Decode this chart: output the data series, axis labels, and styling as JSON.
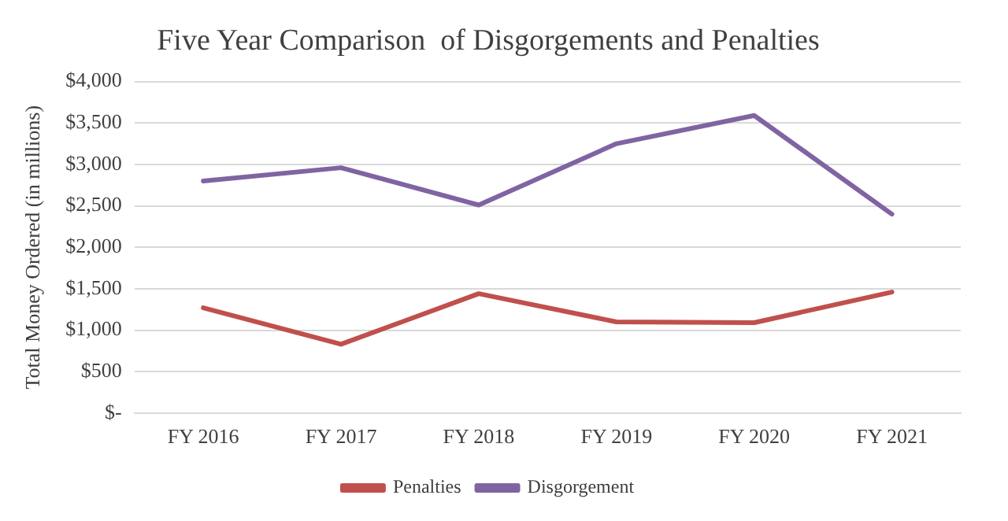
{
  "chart_data": {
    "type": "line",
    "title": "Five Year Comparison  of Disgorgements and Penalties",
    "ylabel": "Total Money Ordered (in millions)",
    "categories": [
      "FY 2016",
      "FY 2017",
      "FY 2018",
      "FY 2019",
      "FY 2020",
      "FY 2021"
    ],
    "series": [
      {
        "name": "Penalties",
        "color": "#c0504d",
        "values": [
          1270,
          830,
          1440,
          1100,
          1090,
          1460
        ]
      },
      {
        "name": "Disgorgement",
        "color": "#8064a2",
        "values": [
          2800,
          2960,
          2510,
          3250,
          3590,
          2400
        ]
      }
    ],
    "ylim": [
      0,
      4000
    ],
    "yticks": [
      {
        "value": 0,
        "label": "$-"
      },
      {
        "value": 500,
        "label": "$500"
      },
      {
        "value": 1000,
        "label": "$1,000"
      },
      {
        "value": 1500,
        "label": "$1,500"
      },
      {
        "value": 2000,
        "label": "$2,000"
      },
      {
        "value": 2500,
        "label": "$2,500"
      },
      {
        "value": 3000,
        "label": "$3,000"
      },
      {
        "value": 3500,
        "label": "$3,500"
      },
      {
        "value": 4000,
        "label": "$4,000"
      }
    ],
    "grid": "y",
    "legend": "bottom",
    "marker": "none",
    "line_style": "solid"
  }
}
